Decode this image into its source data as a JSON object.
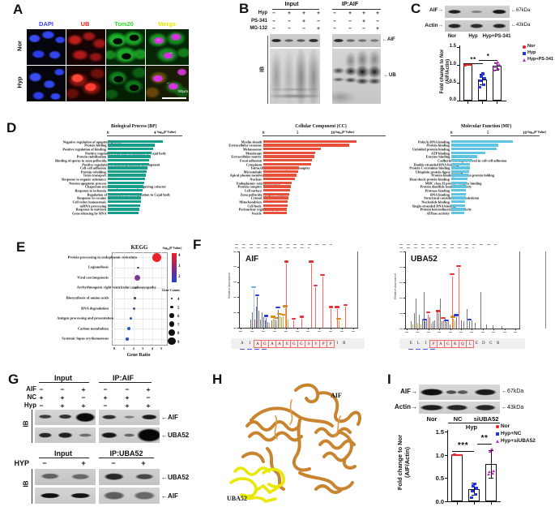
{
  "figure": {
    "panel_labels": {
      "a": "A",
      "b": "B",
      "c": "C",
      "d": "D",
      "e": "E",
      "f": "F",
      "g": "G",
      "h": "H",
      "i": "I"
    }
  },
  "panel_a": {
    "columns": [
      {
        "label": "DAPI",
        "color": "#4343ff"
      },
      {
        "label": "UB",
        "color": "#ee2222"
      },
      {
        "label": "Tom20",
        "color": "#2ee22e"
      },
      {
        "label": "Merge",
        "color": "#e8e800"
      }
    ],
    "rows": [
      "Nor",
      "Hyp"
    ],
    "scale_bar_label": "50μm",
    "arrow_glyph": "→"
  },
  "panel_b": {
    "group_headers": [
      "Input",
      "IP:AIF"
    ],
    "condition_rows": [
      {
        "label": "Hyp",
        "signs": [
          "−",
          "+",
          "+",
          "+",
          "−",
          "+",
          "+",
          "+"
        ]
      },
      {
        "label": "PS-341",
        "signs": [
          "−",
          "−",
          "+",
          "−",
          "−",
          "−",
          "+",
          "−"
        ]
      },
      {
        "label": "MG-132",
        "signs": [
          "−",
          "−",
          "−",
          "+",
          "−",
          "−",
          "−",
          "+"
        ]
      }
    ],
    "ib_label": "IB",
    "band_labels": [
      "←AIF",
      "←UB"
    ]
  },
  "panel_c": {
    "blot_rows": [
      {
        "protein": "AIF→",
        "kda": "←67kDa"
      },
      {
        "protein": "Actin→",
        "kda": "←43kDa"
      }
    ],
    "lane_labels": [
      "Nor",
      "Hyp",
      "Hyp+PS-341"
    ],
    "chart": {
      "ylabel_lines": [
        "Fold change to Nor",
        "(AIF/Actin)"
      ],
      "yticks": [
        "1.5",
        "1.0",
        "0.5",
        "0.0"
      ],
      "bars": [
        {
          "name": "Nor",
          "mean": 1.0,
          "err": 0,
          "points": [
            1.0
          ],
          "color": "#e8232a",
          "shape": "circle",
          "cap": true
        },
        {
          "name": "Hyp",
          "mean": 0.6,
          "err": 0.15,
          "points": [
            0.37,
            0.45,
            0.55,
            0.62,
            0.68,
            0.75
          ],
          "color": "#2138e0",
          "shape": "square"
        },
        {
          "name": "Hyp+PS-341",
          "mean": 0.97,
          "err": 0.1,
          "points": [
            0.85,
            0.9,
            0.95,
            1.0,
            1.05,
            1.08
          ],
          "color": "#c428c8",
          "shape": "triangle"
        }
      ],
      "significance": [
        {
          "label": "**"
        },
        {
          "label": "*"
        }
      ],
      "legend": [
        {
          "label": "Nor",
          "color": "#e8232a",
          "shape": "circle"
        },
        {
          "label": "Hyp",
          "color": "#2138e0",
          "shape": "square"
        },
        {
          "label": "Hyp+PS-341",
          "color": "#c428c8",
          "shape": "triangle"
        }
      ]
    }
  },
  "panel_d": {
    "charts": [
      {
        "title": "Biological Process (BP)",
        "axis_label": "-log₁₀(P Value)",
        "color": "#179e8b",
        "xmax": 5,
        "xticks": [
          {
            "v": 0,
            "t": "0"
          },
          {
            "v": 4,
            "t": "4"
          }
        ],
        "categories": [
          "Negative regulation of apoptotic process",
          "Protein folding",
          "Positive regulation of binding",
          "Positive regulation of protein localization to Cajal body",
          "Protein stabilization",
          "Binding of sperm to zona pellucida",
          "Positive regulation of neuron projection development",
          "Cell-cell adhesion",
          "Protein refolding",
          "Toxin transport",
          "Response to organic substance",
          "Neuron apoptotic process",
          "Chaperone mediated protein folding requiring cofactor",
          "Response to ischemia",
          "Regulation of telomerase RNA localization to Cajal body",
          "Response to cocaine",
          "Cell redox homeostasis",
          "mRNA processing",
          "Response to nutrient",
          "Gene silencing by RNA"
        ],
        "values": [
          4.7,
          4.0,
          3.85,
          3.75,
          3.65,
          3.55,
          3.5,
          3.4,
          3.3,
          3.25,
          3.15,
          3.1,
          3.0,
          2.95,
          2.9,
          2.85,
          2.8,
          2.75,
          2.7,
          2.6
        ]
      },
      {
        "title": "Cellular Component (CC)",
        "axis_label": "-log₁₀(P Value)",
        "color": "#e8503a",
        "xmax": 15.5,
        "xticks": [
          {
            "v": 0,
            "t": "0"
          },
          {
            "v": 5,
            "t": "5"
          },
          {
            "v": 10,
            "t": "10"
          }
        ],
        "categories": [
          "Myelin sheath",
          "Extracellular exosome",
          "Melanosome",
          "Membrane",
          "Extracellular matrix",
          "Focal adhesion",
          "Cytoplasm",
          "Intracellular ribonucleoprotein complex",
          "Microtubule",
          "Apical plasma membrane",
          "Nucleus",
          "Endoplasmic reticulum lumen",
          "Protein complex",
          "Cell surface",
          "Zona pellucida receptor complex",
          "Cytosol",
          "Mitochondrion",
          "Cell body",
          "Perinuclear region of cytoplasm",
          "Vesicle"
        ],
        "values": [
          13.5,
          12.5,
          8.4,
          7.5,
          7.4,
          7.1,
          6.9,
          5.2,
          5.0,
          4.8,
          4.6,
          4.1,
          4.0,
          3.9,
          3.8,
          3.7,
          3.5,
          3.5,
          3.4,
          3.4
        ]
      },
      {
        "title": "Molecular Function (MF)",
        "axis_label": "-log₁₀(P Value)",
        "color": "#5fc4e1",
        "xmax": 10,
        "xticks": [
          {
            "v": 0,
            "t": "0"
          },
          {
            "v": 5,
            "t": "5"
          },
          {
            "v": 10,
            "t": "10"
          }
        ],
        "categories": [
          "Poly(A) RNA binding",
          "Protein binding",
          "Unfolded protein binding",
          "ATP binding",
          "Enzyme binding",
          "Cadherin binding involved in cell-cell adhesion",
          "Double-stranded RNA binding",
          "Protein C-terminus binding",
          "Ubiquitin protein ligase binding",
          "Protein binding involved in protein folding",
          "Heat shock protein binding",
          "MHC class II protein complex binding",
          "Protein disulfide isomerase activity",
          "Protease binding",
          "RNA binding",
          "Structural constituent of cytoskeleton",
          "Nucleotide binding",
          "Single-stranded DNA binding",
          "Protein heterodimerization activity",
          "ATPase activity"
        ],
        "values": [
          8.4,
          6.4,
          6.2,
          4.65,
          3.5,
          2.9,
          2.6,
          2.5,
          2.4,
          2.3,
          2.2,
          2.15,
          2.1,
          2.05,
          2.0,
          1.95,
          1.9,
          1.88,
          1.85,
          1.8
        ]
      }
    ]
  },
  "panel_e": {
    "title": "KEGG",
    "xlabel": "Gene Ratio",
    "xticks": [
      "0",
      "1",
      "2",
      "3",
      "4",
      "5"
    ],
    "categories": [
      "Protein processing in endoplasmic reticulum",
      "Legionellosis",
      "Viral carcinogenesis",
      "Arrhythmogenic right ventricular cardiomyopathy",
      "Biosynthesis of amino acids",
      "RNA degradation",
      "Antigen processing and presentation",
      "Carbon metabolism",
      "Systemic lupus erythematosus"
    ],
    "dots": [
      [
        4.5,
        5.5,
        "#e8232a"
      ],
      [
        2.5,
        1.3,
        "#5a3970"
      ],
      [
        2.4,
        3.6,
        "#7a3b8e"
      ],
      [
        2.25,
        1.3,
        "#4f3d77"
      ],
      [
        2.15,
        1.3,
        "#47406f"
      ],
      [
        2.05,
        1.5,
        "#3c4a86"
      ],
      [
        1.7,
        1.6,
        "#2d4f9e"
      ],
      [
        1.5,
        2.0,
        "#2356c0"
      ],
      [
        1.35,
        1.8,
        "#2a54b8"
      ]
    ],
    "colorbar": {
      "title": "-log₁₀(P Value)",
      "ticks": [
        "4",
        "3",
        "2"
      ]
    },
    "gene_counts": {
      "title": "Gene Counts",
      "labels": [
        "4",
        "5",
        "6",
        "7",
        "8",
        "9"
      ]
    }
  },
  "panel_f": {
    "spectra": [
      {
        "name": "AIF",
        "ylabel": "Relative Abundance",
        "peaks": [
          [
            0.085,
            0.12,
            "g",
            0
          ],
          [
            0.1,
            0.22,
            "g",
            0
          ],
          [
            0.115,
            0.55,
            "lb",
            1
          ],
          [
            0.125,
            0.12,
            "r",
            0
          ],
          [
            0.135,
            0.3,
            "g",
            0
          ],
          [
            0.145,
            0.44,
            "b",
            1
          ],
          [
            0.16,
            0.25,
            "g",
            0
          ],
          [
            0.175,
            0.12,
            "g",
            0
          ],
          [
            0.19,
            0.22,
            "g",
            0
          ],
          [
            0.2,
            0.15,
            "b",
            0
          ],
          [
            0.215,
            0.1,
            "g",
            0
          ],
          [
            0.225,
            0.14,
            "b",
            1
          ],
          [
            0.24,
            0.08,
            "g",
            0
          ],
          [
            0.255,
            0.07,
            "o",
            0
          ],
          [
            0.27,
            0.1,
            "g",
            0
          ],
          [
            0.285,
            0.13,
            "o",
            1
          ],
          [
            0.3,
            0.12,
            "b",
            0
          ],
          [
            0.315,
            0.11,
            "o",
            1
          ],
          [
            0.33,
            0.26,
            "b",
            1
          ],
          [
            0.345,
            0.17,
            "o",
            1
          ],
          [
            0.36,
            0.15,
            "o",
            0
          ],
          [
            0.375,
            0.16,
            "o",
            1
          ],
          [
            0.395,
            0.28,
            "o",
            1
          ],
          [
            0.405,
            0.92,
            "r",
            1
          ],
          [
            0.42,
            0.12,
            "o",
            0
          ],
          [
            0.47,
            0.1,
            "r",
            1
          ],
          [
            0.54,
            0.13,
            "r",
            1
          ],
          [
            0.625,
            0.92,
            "r",
            1
          ],
          [
            0.665,
            0.58,
            "r",
            1
          ],
          [
            0.725,
            0.73,
            "r",
            1
          ],
          [
            0.8,
            0.27,
            "r",
            1
          ],
          [
            0.855,
            0.27,
            "r",
            1
          ],
          [
            0.87,
            0.1,
            "o",
            1
          ],
          [
            0.93,
            0.3,
            "r",
            1
          ]
        ],
        "peptide": [
          "A",
          "I",
          "A",
          "G",
          "A",
          "A",
          "E",
          "G",
          "G",
          "S",
          "V",
          "P",
          "P",
          "I",
          "R"
        ],
        "box_from": 2,
        "box_to": 12
      },
      {
        "name": "UBA52",
        "ylabel": "Relative Abundance",
        "peaks": [
          [
            0.04,
            0.1,
            "g",
            0
          ],
          [
            0.055,
            0.06,
            "o",
            0
          ],
          [
            0.07,
            0.22,
            "g",
            0
          ],
          [
            0.085,
            0.42,
            "g",
            0
          ],
          [
            0.095,
            0.08,
            "o",
            0
          ],
          [
            0.11,
            0.2,
            "g",
            0
          ],
          [
            0.125,
            0.06,
            "o",
            0
          ],
          [
            0.14,
            0.14,
            "g",
            0
          ],
          [
            0.155,
            0.52,
            "g",
            0
          ],
          [
            0.165,
            0.1,
            "b",
            1
          ],
          [
            0.18,
            0.12,
            "g",
            0
          ],
          [
            0.195,
            0.2,
            "r",
            1
          ],
          [
            0.21,
            0.16,
            "g",
            0
          ],
          [
            0.225,
            0.08,
            "o",
            0
          ],
          [
            0.24,
            0.1,
            "b",
            0
          ],
          [
            0.255,
            0.12,
            "g",
            0
          ],
          [
            0.275,
            0.24,
            "g",
            0
          ],
          [
            0.29,
            0.22,
            "r",
            1
          ],
          [
            0.305,
            0.42,
            "g",
            0
          ],
          [
            0.32,
            0.1,
            "g",
            0
          ],
          [
            0.335,
            0.12,
            "r",
            1
          ],
          [
            0.35,
            0.14,
            "g",
            0
          ],
          [
            0.365,
            0.09,
            "b",
            1
          ],
          [
            0.38,
            0.1,
            "r",
            0
          ],
          [
            0.395,
            0.06,
            "g",
            0
          ],
          [
            0.415,
            0.74,
            "r",
            1
          ],
          [
            0.425,
            0.14,
            "o",
            1
          ],
          [
            0.44,
            0.12,
            "o",
            0
          ],
          [
            0.455,
            0.16,
            "b",
            1
          ],
          [
            0.475,
            0.86,
            "r",
            1
          ],
          [
            0.5,
            0.12,
            "b",
            0
          ],
          [
            0.525,
            0.1,
            "g",
            0
          ],
          [
            0.55,
            0.28,
            "g",
            0
          ],
          [
            0.575,
            0.1,
            "b",
            1
          ],
          [
            0.6,
            0.12,
            "g",
            0
          ],
          [
            0.625,
            0.08,
            "g",
            0
          ],
          [
            0.68,
            0.52,
            "g",
            0
          ],
          [
            0.73,
            0.06,
            "g",
            0
          ],
          [
            0.79,
            0.05,
            "g",
            0
          ],
          [
            0.87,
            0.04,
            "g",
            0
          ]
        ],
        "peptide": [
          "E",
          "L",
          "I",
          "F",
          "A",
          "G",
          "K",
          "Q",
          "L",
          "E",
          "D",
          "G",
          "R"
        ],
        "box_from": 3,
        "box_to": 8
      }
    ]
  },
  "panel_g": {
    "top": {
      "group_headers": [
        "Input",
        "IP:AIF"
      ],
      "condition_rows": [
        {
          "label": "AIF",
          "signs": [
            "−",
            "−",
            "+",
            "−",
            "−",
            "+"
          ]
        },
        {
          "label": "NC",
          "signs": [
            "+",
            "+",
            "−",
            "+",
            "+",
            "−"
          ]
        },
        {
          "label": "Hyp",
          "signs": [
            "−",
            "+",
            "+",
            "−",
            "+",
            "+"
          ]
        }
      ],
      "ib_label": "IB",
      "band_labels": [
        "←AIF",
        "←UBA52"
      ]
    },
    "bottom": {
      "group_headers": [
        "Input",
        "IP:UBA52"
      ],
      "condition_rows": [
        {
          "label": "HYP",
          "signs": [
            "−",
            "+",
            "−",
            "+"
          ]
        }
      ],
      "ib_label": "IB",
      "band_labels": [
        "←UBA52",
        "←AIF"
      ]
    }
  },
  "panel_h": {
    "protein_labels": {
      "aif": "AIF",
      "uba52": "UBA52"
    }
  },
  "panel_i": {
    "blot_rows": [
      {
        "protein": "AIF→",
        "kda": "←67kDa"
      },
      {
        "protein": "Actin→",
        "kda": "←43kDa"
      }
    ],
    "lane_labels": [
      "Nor",
      "NC",
      "siUBA52"
    ],
    "group_label": "Hyp",
    "chart": {
      "ylabel_lines": [
        "Fold change to Nor",
        "(AIF/Actin)"
      ],
      "yticks": [
        "1.5",
        "1.0",
        "0.5",
        "0.0"
      ],
      "bars": [
        {
          "name": "Nor",
          "mean": 1.0,
          "err": 0,
          "points": [
            1.0
          ],
          "color": "#e8232a",
          "shape": "circle",
          "cap": true
        },
        {
          "name": "Hyp+NC",
          "mean": 0.27,
          "err": 0.13,
          "points": [
            0.08,
            0.15,
            0.22,
            0.28,
            0.33,
            0.38
          ],
          "color": "#2138e0",
          "shape": "square"
        },
        {
          "name": "Hyp+siUBA52",
          "mean": 0.8,
          "err": 0.3,
          "points": [
            0.58,
            0.6,
            0.63,
            0.65,
            1.08,
            1.12
          ],
          "color": "#c428c8",
          "shape": "triangle"
        }
      ],
      "significance": [
        {
          "label": "***"
        },
        {
          "label": "**"
        }
      ],
      "legend": [
        {
          "label": "Nor",
          "color": "#e8232a",
          "shape": "circle"
        },
        {
          "label": "Hyp+NC",
          "color": "#2138e0",
          "shape": "square"
        },
        {
          "label": "Hyp+siUBA52",
          "color": "#c428c8",
          "shape": "triangle"
        }
      ]
    }
  }
}
